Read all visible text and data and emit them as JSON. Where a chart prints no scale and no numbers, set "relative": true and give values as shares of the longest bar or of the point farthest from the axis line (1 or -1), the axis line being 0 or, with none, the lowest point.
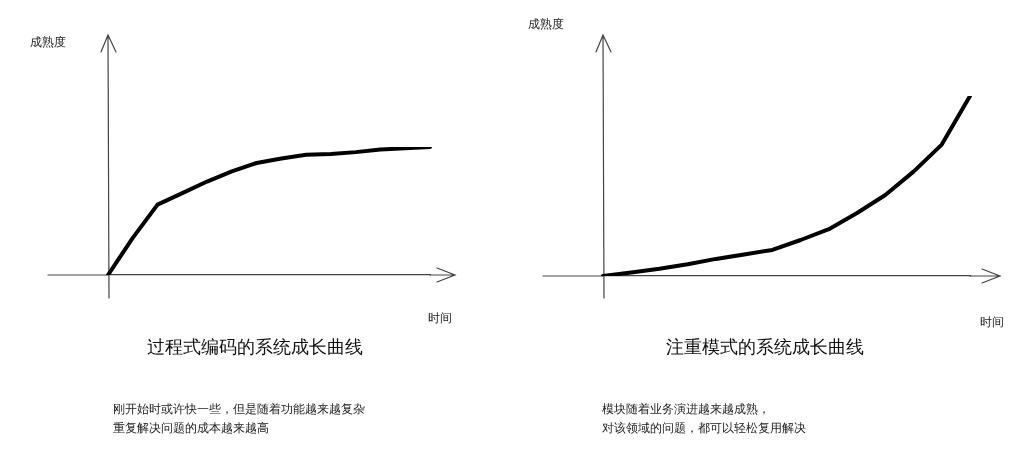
{
  "chart_data": [
    {
      "type": "line",
      "relative": true,
      "title": "过程式编码的系统成长曲线",
      "xlabel": "时间",
      "ylabel": "成熟度",
      "annotations": [
        "刚开始时或许快一些，但是随着功能越来越复杂",
        "重复解决问题的成本越来越高"
      ],
      "tick_labels": false,
      "legend": false,
      "marker": "none",
      "line_style": "solid",
      "categories": [
        null,
        null,
        null,
        null,
        null,
        null,
        null,
        null,
        null,
        null,
        null,
        null,
        null,
        null
      ],
      "series": [
        {
          "color": "#000000",
          "values": [
            0,
            0.29,
            0.55,
            0.64,
            0.73,
            0.81,
            0.875,
            0.91,
            0.94,
            0.945,
            0.96,
            0.98,
            0.99,
            1
          ]
        }
      ]
    },
    {
      "type": "line",
      "relative": true,
      "title": "注重模式的系统成长曲线",
      "xlabel": "时间",
      "ylabel": "成熟度",
      "annotations": [
        "模块随着业务演进越来越成熟，",
        "对该领域的问题，都可以轻松复用解决"
      ],
      "tick_labels": false,
      "legend": false,
      "marker": "none",
      "line_style": "solid",
      "categories": [
        null,
        null,
        null,
        null,
        null,
        null,
        null,
        null,
        null,
        null,
        null,
        null,
        null,
        null
      ],
      "series": [
        {
          "color": "#000000",
          "values": [
            0,
            0.02,
            0.04,
            0.065,
            0.095,
            0.12,
            0.145,
            0.2,
            0.26,
            0.35,
            0.45,
            0.58,
            0.73,
            1
          ]
        }
      ]
    }
  ]
}
